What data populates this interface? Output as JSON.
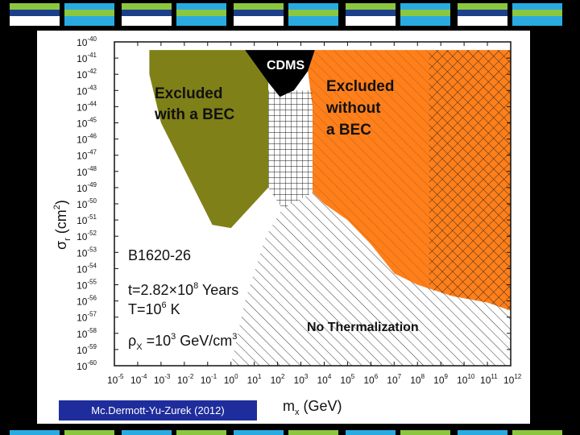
{
  "decor": {
    "top_tiles": 5,
    "colors": {
      "green": "#8cc63f",
      "blue": "#29abe2",
      "darkblue": "#1b3f8b",
      "white": "#ffffff"
    }
  },
  "citation": "Mc.Dermott-Yu-Zurek (2012)",
  "chart_data": {
    "type": "area",
    "title": "",
    "xlabel": "m",
    "xlabel_sub": "x",
    "xlabel_unit": " (GeV)",
    "ylabel_greek": "σ",
    "ylabel_sub": "r",
    "ylabel_unit": "(cm",
    "ylabel_exp": "2",
    "ylabel_close": ")",
    "x_scale": "log",
    "y_scale": "log",
    "xlim_exp": [
      -5,
      12
    ],
    "ylim_exp": [
      -60,
      -40
    ],
    "x_tick_exponents": [
      -5,
      -4,
      -3,
      -2,
      -1,
      0,
      1,
      2,
      3,
      4,
      5,
      6,
      7,
      8,
      9,
      10,
      11,
      12
    ],
    "x_tick_base": "10",
    "y_tick_exponents": [
      -40,
      -41,
      -42,
      -43,
      -44,
      -45,
      -46,
      -47,
      -48,
      -49,
      -50,
      -51,
      -52,
      -53,
      -54,
      -55,
      -56,
      -57,
      -58,
      -59,
      -60
    ],
    "y_tick_base": "10",
    "regions": [
      {
        "name": "Excluded with a BEC",
        "label_lines": [
          "Excluded",
          "with a BEC"
        ],
        "color": "#808019",
        "boundary_log10": [
          [
            -3.5,
            -40.5
          ],
          [
            0.6,
            -40.5
          ],
          [
            1.6,
            -42.5
          ],
          [
            1.6,
            -49
          ],
          [
            0,
            -51.5
          ],
          [
            -0.8,
            -51.3
          ],
          [
            -3,
            -45
          ],
          [
            -3.5,
            -42
          ]
        ]
      },
      {
        "name": "CDMS",
        "label_lines": [
          "CDMS"
        ],
        "color": "#000000",
        "boundary_log10": [
          [
            0.6,
            -40.5
          ],
          [
            3.6,
            -40.5
          ],
          [
            3.3,
            -41.8
          ],
          [
            2.7,
            -43
          ],
          [
            2.1,
            -43.4
          ],
          [
            1.6,
            -42.5
          ]
        ]
      },
      {
        "name": "Excluded without a BEC",
        "label_lines": [
          "Excluded",
          "without",
          "a BEC"
        ],
        "color": "#ff7f1a",
        "boundary_log10": [
          [
            3.6,
            -40.5
          ],
          [
            12,
            -40.5
          ],
          [
            12,
            -56.6
          ],
          [
            11,
            -56.1
          ],
          [
            9.5,
            -55.7
          ],
          [
            8,
            -55
          ],
          [
            7,
            -54.3
          ],
          [
            6,
            -52.5
          ],
          [
            5,
            -51
          ],
          [
            4,
            -50
          ],
          [
            3.5,
            -49.3
          ],
          [
            3.5,
            -44
          ],
          [
            3.3,
            -41.8
          ]
        ]
      },
      {
        "name": "No Thermalization",
        "label_lines": [
          "No Thermalization"
        ],
        "color": "hatched",
        "boundary_log10": [
          [
            0,
            -60
          ],
          [
            12,
            -60
          ],
          [
            12,
            -56.6
          ],
          [
            11,
            -56.1
          ],
          [
            9.5,
            -55.7
          ],
          [
            8,
            -55
          ],
          [
            7,
            -54.3
          ],
          [
            6,
            -52.5
          ],
          [
            5,
            -51
          ],
          [
            4,
            -50
          ],
          [
            3.5,
            -49.3
          ],
          [
            2.2,
            -50.3
          ],
          [
            1.5,
            -52
          ],
          [
            0.6,
            -56
          ],
          [
            0,
            -60
          ]
        ]
      }
    ],
    "annotations": {
      "star_name": "B1620-26",
      "age_prefix": "t=2.82",
      "age_times": "×",
      "age_base": "10",
      "age_exp": "8",
      "age_suffix": " Years",
      "temp_prefix": "T=10",
      "temp_exp": "6",
      "temp_suffix": " K",
      "rho_greek": "ρ",
      "rho_sub": "X",
      "rho_mid": " =10",
      "rho_exp": "3",
      "rho_suffix": " GeV/cm",
      "rho_suffix_exp": "3"
    },
    "grid": false,
    "legend": "none"
  }
}
